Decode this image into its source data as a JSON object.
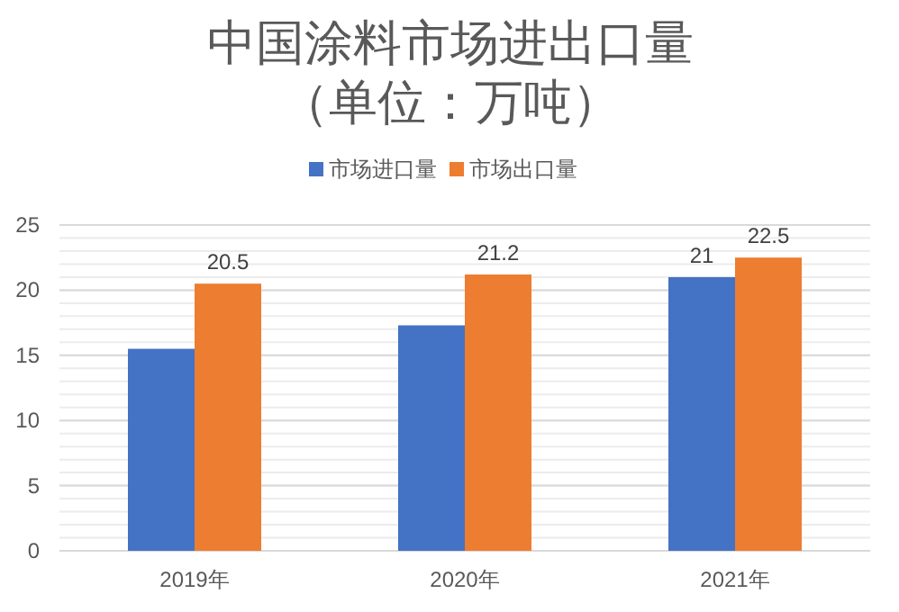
{
  "chart_data": {
    "type": "bar",
    "title": "中国涂料市场进出口量（单位：万吨）",
    "categories": [
      "2019年",
      "2020年",
      "2021年"
    ],
    "series": [
      {
        "name": "市场进口量",
        "color": "#4472c4",
        "values": [
          15.5,
          17.3,
          21
        ],
        "value_labels": [
          null,
          null,
          "21"
        ]
      },
      {
        "name": "市场出口量",
        "color": "#ed7d31",
        "values": [
          20.5,
          21.2,
          22.5
        ],
        "value_labels": [
          "20.5",
          "21.2",
          "22.5"
        ]
      }
    ],
    "ylim": [
      0,
      25
    ],
    "yticks": [
      0,
      5,
      10,
      15,
      20,
      25
    ],
    "grid": "y",
    "legend": "top"
  }
}
